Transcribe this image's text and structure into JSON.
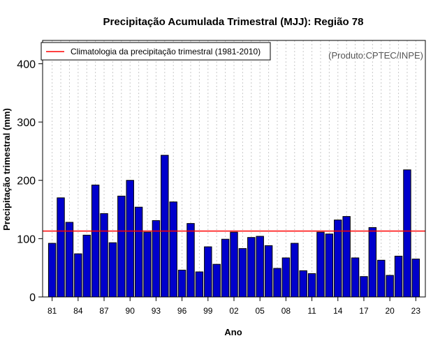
{
  "chart_data": {
    "type": "bar",
    "title": "Precipitação Acumulada Trimestral (MJJ): Região 78",
    "xlabel": "Ano",
    "ylabel": "Precipitação trimestral (mm)",
    "ylim": [
      0,
      440
    ],
    "yticks": [
      0,
      100,
      200,
      300,
      400
    ],
    "credit": "(Produto:CPTEC/INPE)",
    "categories": [
      "1981",
      "1982",
      "1983",
      "1984",
      "1985",
      "1986",
      "1987",
      "1988",
      "1989",
      "1990",
      "1991",
      "1992",
      "1993",
      "1994",
      "1995",
      "1996",
      "1997",
      "1998",
      "1999",
      "2000",
      "2001",
      "2002",
      "2003",
      "2004",
      "2005",
      "2006",
      "2007",
      "2008",
      "2009",
      "2010",
      "2011",
      "2012",
      "2013",
      "2014",
      "2015",
      "2016",
      "2017",
      "2018",
      "2019",
      "2020",
      "2021",
      "2022",
      "2023"
    ],
    "values": [
      92,
      170,
      128,
      74,
      106,
      192,
      143,
      93,
      173,
      200,
      154,
      111,
      131,
      243,
      163,
      46,
      126,
      43,
      86,
      56,
      99,
      111,
      83,
      102,
      104,
      88,
      49,
      67,
      92,
      45,
      40,
      111,
      108,
      132,
      138,
      67,
      35,
      119,
      63,
      37,
      70,
      218,
      65
    ],
    "tick_labels": [
      "81",
      "84",
      "87",
      "90",
      "93",
      "96",
      "99",
      "02",
      "05",
      "08",
      "11",
      "14",
      "17",
      "20",
      "23"
    ],
    "tick_indices": [
      0,
      3,
      6,
      9,
      12,
      15,
      18,
      21,
      24,
      27,
      30,
      33,
      36,
      39,
      42
    ],
    "climatology": {
      "label": "Climatologia da precipitação trimestral (1981-2010)",
      "value": 113,
      "color": "#ff0000"
    },
    "bar_color": "#0000cc",
    "grid": "vertical-dotted",
    "legend_position": "top-left"
  }
}
